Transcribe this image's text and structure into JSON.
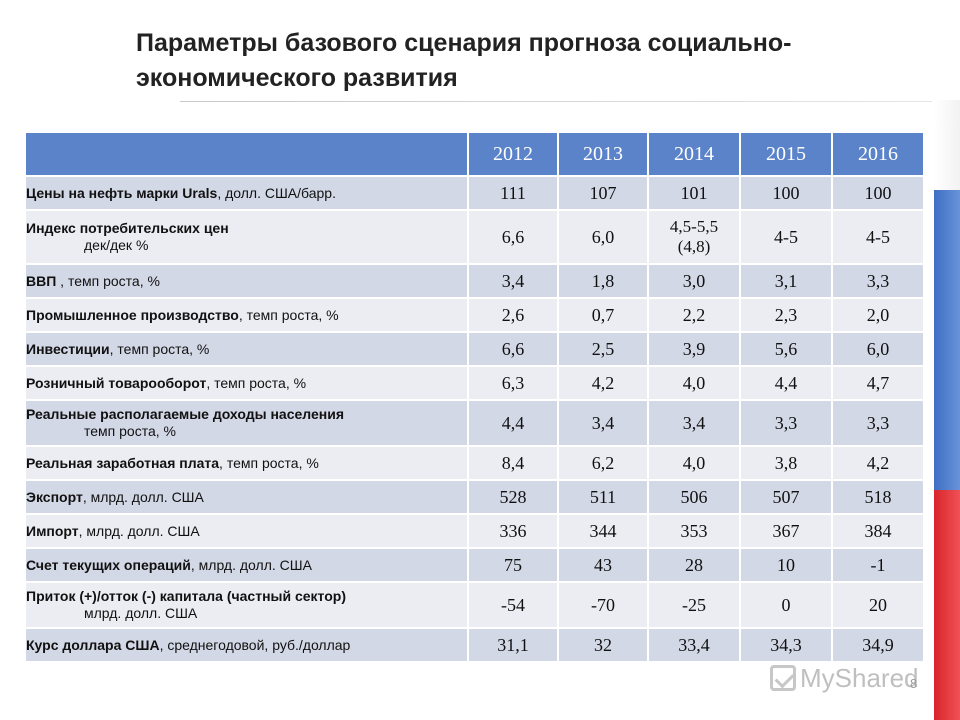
{
  "title_line1": "Параметры базового сценария прогноза социально-",
  "title_line2": "экономического развития",
  "years": [
    "2012",
    "2013",
    "2014",
    "2015",
    "2016"
  ],
  "rows": [
    {
      "bold": "Цены на нефть марки Urals",
      "rest": ", долл. США/барр.",
      "line2": "",
      "values": [
        "111",
        "107",
        "101",
        "100",
        "100"
      ]
    },
    {
      "bold": "Индекс потребительских цен",
      "rest": "",
      "line2": "дек/дек %",
      "values": [
        "6,6",
        "6,0",
        "4,5-5,5\n(4,8)",
        "4-5",
        "4-5"
      ]
    },
    {
      "bold": "ВВП",
      "rest": " , темп роста, %",
      "line2": "",
      "values": [
        "3,4",
        "1,8",
        "3,0",
        "3,1",
        "3,3"
      ]
    },
    {
      "bold": "Промышленное производство",
      "rest": ", темп роста, %",
      "line2": "",
      "values": [
        "2,6",
        "0,7",
        "2,2",
        "2,3",
        "2,0"
      ]
    },
    {
      "bold": "Инвестиции",
      "rest": ", темп роста, %",
      "line2": "",
      "values": [
        "6,6",
        "2,5",
        "3,9",
        "5,6",
        "6,0"
      ]
    },
    {
      "bold": "Розничный товарооборот",
      "rest": ", темп роста, %",
      "line2": "",
      "values": [
        "6,3",
        "4,2",
        "4,0",
        "4,4",
        "4,7"
      ]
    },
    {
      "bold": "Реальные располагаемые доходы населения",
      "rest": "",
      "line2": "темп роста, %",
      "values": [
        "4,4",
        "3,4",
        "3,4",
        "3,3",
        "3,3"
      ]
    },
    {
      "bold": "Реальная заработная плата",
      "rest": ", темп роста, %",
      "line2": "",
      "values": [
        "8,4",
        "6,2",
        "4,0",
        "3,8",
        "4,2"
      ]
    },
    {
      "bold": "Экспорт",
      "rest": ", млрд. долл. США",
      "line2": "",
      "values": [
        "528",
        "511",
        "506",
        "507",
        "518"
      ]
    },
    {
      "bold": "Импорт",
      "rest": ", млрд. долл. США",
      "line2": "",
      "values": [
        "336",
        "344",
        "353",
        "367",
        "384"
      ]
    },
    {
      "bold": "Счет текущих операций",
      "rest": ", млрд. долл. США",
      "line2": "",
      "values": [
        "75",
        "43",
        "28",
        "10",
        "-1"
      ]
    },
    {
      "bold": "Приток (+)/отток (-) капитала (частный сектор)",
      "rest": "",
      "line2": "млрд. долл. США",
      "values": [
        "-54",
        "-70",
        "-25",
        "0",
        "20"
      ]
    },
    {
      "bold": "Курс доллара США",
      "rest": ", среднегодовой, руб./доллар",
      "line2": "",
      "values": [
        "31,1",
        "32",
        "33,4",
        "34,3",
        "34,9"
      ]
    }
  ],
  "watermark": "MyShared",
  "page_number": "8",
  "colors": {
    "header": "#5b83c9",
    "row_dark": "#d3d8e6",
    "row_light": "#ebedf3",
    "flag_blue": "#3d6fc4",
    "flag_red": "#d8252b"
  }
}
